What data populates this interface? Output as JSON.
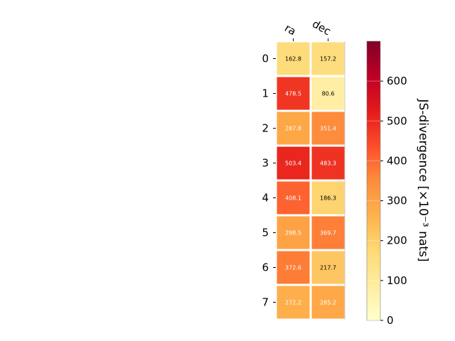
{
  "chart_data": {
    "type": "heatmap",
    "columns": [
      "ra",
      "dec"
    ],
    "rows": [
      "0",
      "1",
      "2",
      "3",
      "4",
      "5",
      "6",
      "7"
    ],
    "values": [
      [
        162.8,
        157.2
      ],
      [
        478.5,
        80.6
      ],
      [
        287.8,
        351.4
      ],
      [
        503.4,
        483.3
      ],
      [
        408.1,
        186.3
      ],
      [
        298.5,
        369.7
      ],
      [
        372.6,
        217.7
      ],
      [
        272.2,
        285.2
      ]
    ],
    "value_labels": [
      [
        "162.8",
        "157.2"
      ],
      [
        "478.5",
        "80.6"
      ],
      [
        "287.8",
        "351.4"
      ],
      [
        "503.4",
        "483.3"
      ],
      [
        "408.1",
        "186.3"
      ],
      [
        "298.5",
        "369.7"
      ],
      [
        "372.6",
        "217.7"
      ],
      [
        "272.2",
        "285.2"
      ]
    ],
    "colorbar": {
      "label": "JS-divergence [×10⁻³ nats]",
      "range": [
        0,
        700
      ],
      "ticks": [
        0,
        100,
        200,
        300,
        400,
        500,
        600
      ],
      "tick_labels": [
        "0",
        "100",
        "200",
        "300",
        "400",
        "500",
        "600"
      ],
      "colormap": "YlOrRd"
    },
    "colors": {
      "light_text": "#ffffff",
      "dark_text": "#000000",
      "cell_border": "#ffffff"
    }
  }
}
